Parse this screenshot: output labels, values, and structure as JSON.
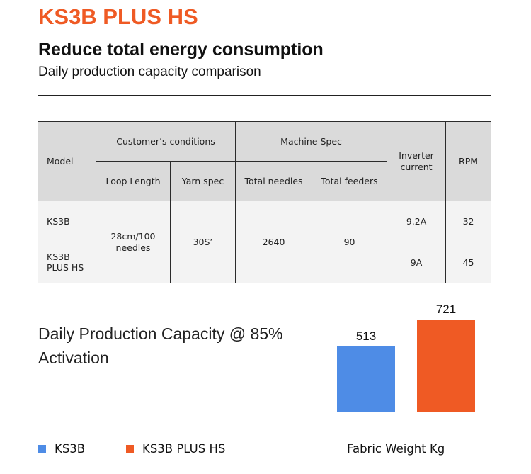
{
  "header": {
    "brand": "KS3B PLUS HS",
    "headline": "Reduce total energy consumption",
    "subheadline": "Daily production capacity comparison"
  },
  "spec_table": {
    "headers": {
      "model": "Model",
      "customer_conditions": "Customer’s conditions",
      "loop_length": "Loop Length",
      "yarn_spec": "Yarn spec",
      "machine_spec": "Machine Spec",
      "total_needles": "Total needles",
      "total_feeders": "Total feeders",
      "inverter_current": "Inverter current",
      "rpm": "RPM"
    },
    "shared": {
      "loop_length": "28cm/100 needles",
      "yarn_spec": "30S’",
      "total_needles": "2640",
      "total_feeders": "90"
    },
    "rows": [
      {
        "model": "KS3B",
        "inverter_current": "9.2A",
        "rpm": "32"
      },
      {
        "model": "KS3B PLUS HS",
        "inverter_current": "9A",
        "rpm": "45"
      }
    ]
  },
  "chart_data": {
    "type": "bar",
    "title": "Daily Production Capacity @ 85% Activation",
    "xlabel": "Fabric Weight Kg",
    "categories": [
      "KS3B",
      "KS3B PLUS HS"
    ],
    "values": [
      513,
      721
    ],
    "value_labels": [
      "513",
      "721"
    ],
    "colors": [
      "#4e8ce6",
      "#ef5a24"
    ],
    "ylim": [
      0,
      721
    ],
    "legend": [
      "KS3B",
      "KS3B PLUS HS"
    ],
    "legend_position": "bottom-left",
    "grid": false
  }
}
